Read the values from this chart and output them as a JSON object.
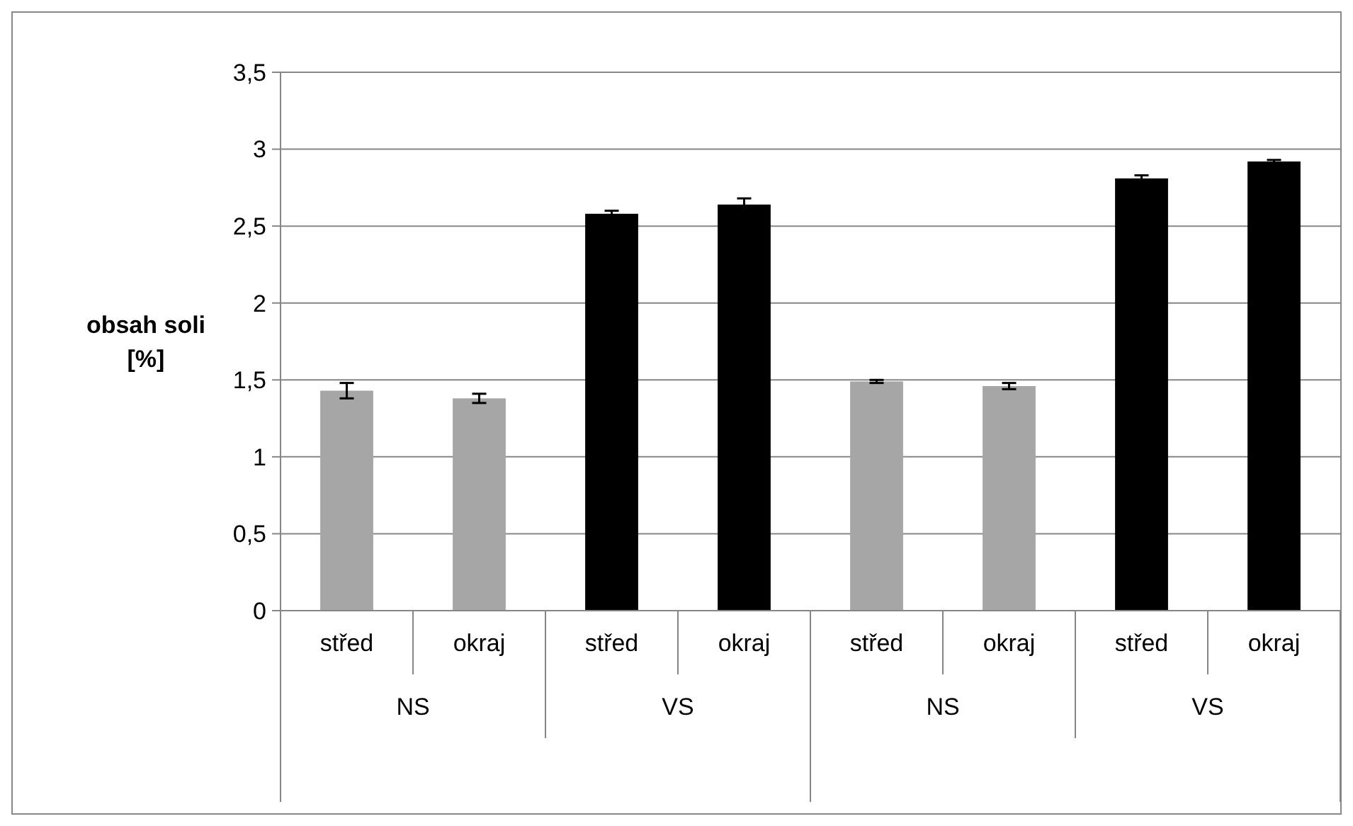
{
  "chart_data": {
    "type": "bar",
    "ylabel": "obsah soli [%]",
    "categories": [
      "střed",
      "okraj",
      "střed",
      "okraj",
      "střed",
      "okraj",
      "střed",
      "okraj"
    ],
    "values": [
      1.43,
      1.38,
      2.58,
      2.64,
      1.49,
      1.46,
      2.81,
      2.92
    ],
    "colors": [
      "#a6a6a6",
      "#a6a6a6",
      "#000000",
      "#000000",
      "#a6a6a6",
      "#a6a6a6",
      "#000000",
      "#000000"
    ],
    "errors": [
      0.05,
      0.03,
      0.02,
      0.04,
      0.01,
      0.02,
      0.02,
      0.01
    ],
    "annotations": [
      "NS",
      "VS",
      "NS",
      "VS"
    ],
    "ylim": [
      0,
      3.5
    ],
    "yticks": [
      {
        "value": 0,
        "label": "0"
      },
      {
        "value": 0.5,
        "label": "0,5"
      },
      {
        "value": 1,
        "label": "1"
      },
      {
        "value": 1.5,
        "label": "1,5"
      },
      {
        "value": 2,
        "label": "2"
      },
      {
        "value": 2.5,
        "label": "2,5"
      },
      {
        "value": 3,
        "label": "3"
      },
      {
        "value": 3.5,
        "label": "3,5"
      }
    ],
    "grid": "y"
  }
}
